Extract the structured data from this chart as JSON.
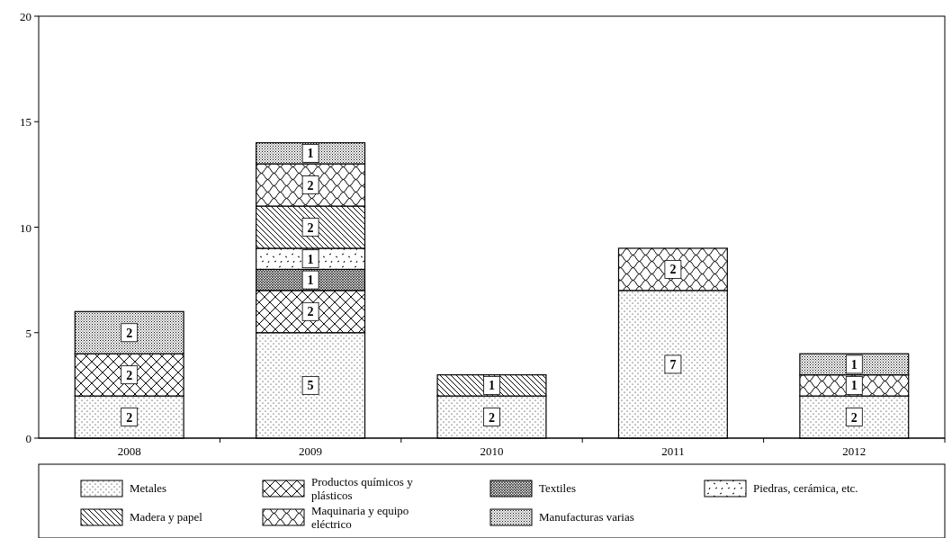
{
  "chart_data": {
    "type": "bar",
    "stacked": true,
    "categories": [
      "2008",
      "2009",
      "2010",
      "2011",
      "2012"
    ],
    "series": [
      {
        "name": "Metales",
        "color": "#000000",
        "values": [
          2,
          5,
          2,
          7,
          2
        ]
      },
      {
        "name": "Productos químicos y plásticos",
        "color": "#000000",
        "values": [
          2,
          2,
          null,
          null,
          null
        ]
      },
      {
        "name": "Textiles",
        "color": "#000000",
        "values": [
          null,
          1,
          null,
          null,
          null
        ]
      },
      {
        "name": "Piedras, cerámica, etc.",
        "color": "#000000",
        "values": [
          null,
          1,
          null,
          null,
          null
        ]
      },
      {
        "name": "Madera y papel",
        "color": "#000000",
        "values": [
          null,
          2,
          1,
          null,
          null
        ]
      },
      {
        "name": "Maquinaria y equipo eléctrico",
        "color": "#000000",
        "values": [
          null,
          2,
          null,
          2,
          1
        ]
      },
      {
        "name": "Manufacturas varias",
        "color": "#000000",
        "values": [
          2,
          1,
          null,
          null,
          1
        ]
      }
    ],
    "ylim": [
      0,
      20
    ],
    "yticks": [
      0,
      5,
      10,
      15,
      20
    ],
    "grid": false,
    "legend": "bottom",
    "data_labels": true
  }
}
